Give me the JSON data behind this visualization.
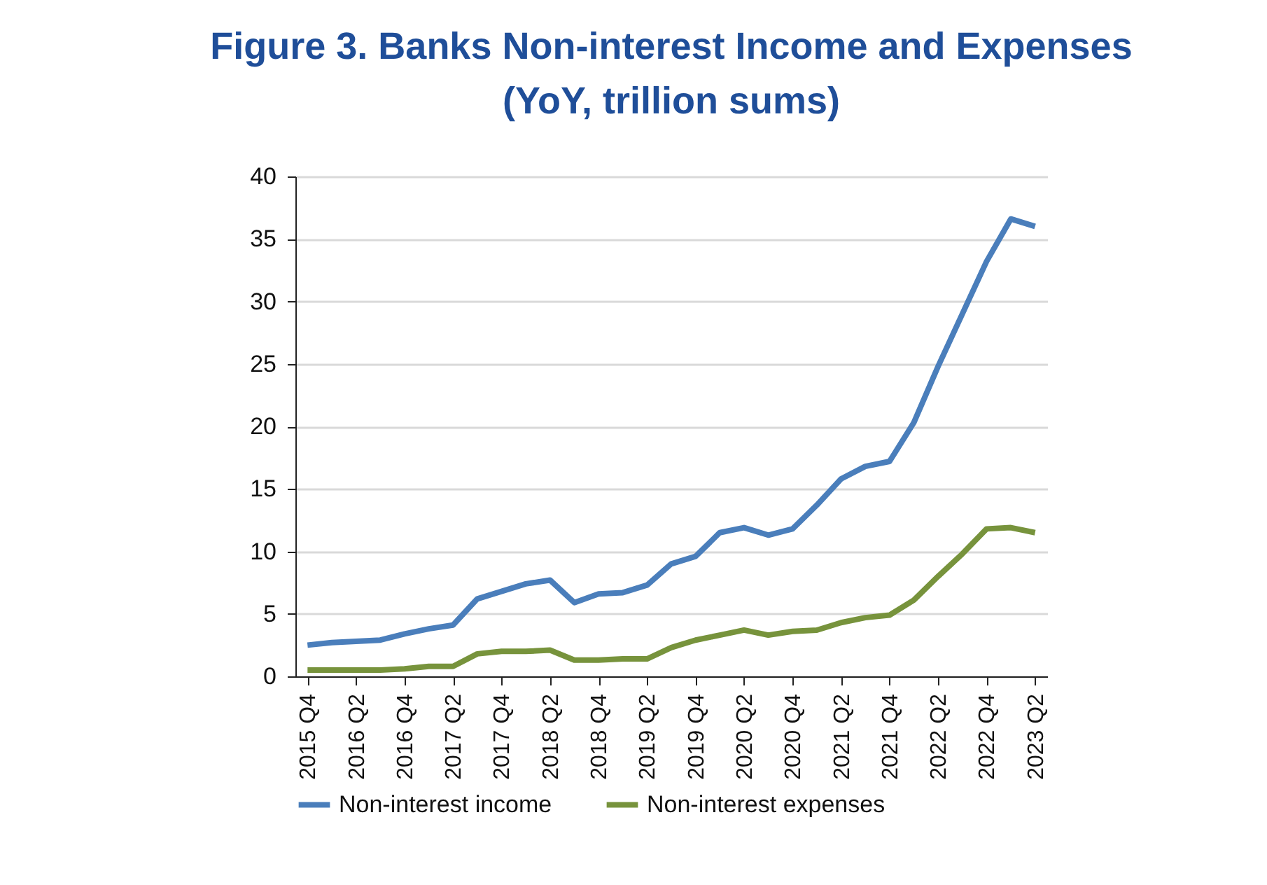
{
  "chart_data": {
    "type": "line",
    "title": "Figure 3. Banks Non-interest Income and Expenses",
    "subtitle": "(YoY, trillion sums)",
    "categories": [
      "2015 Q4",
      null,
      "2016 Q2",
      null,
      "2016 Q4",
      null,
      "2017 Q2",
      null,
      "2017 Q4",
      null,
      "2018 Q2",
      null,
      "2018 Q4",
      null,
      "2019 Q2",
      null,
      "2019 Q4",
      null,
      "2020 Q2",
      null,
      "2020 Q4",
      null,
      "2021 Q2",
      null,
      "2021 Q4",
      null,
      "2022 Q2",
      null,
      "2022 Q4",
      null,
      "2023 Q2"
    ],
    "series": [
      {
        "name": "Non-interest income",
        "color": "#4a7ebb",
        "values": [
          2.5,
          2.7,
          2.8,
          2.9,
          3.4,
          3.8,
          4.1,
          6.2,
          6.8,
          7.4,
          7.7,
          5.9,
          6.6,
          6.7,
          7.3,
          9.0,
          9.6,
          11.5,
          11.9,
          11.3,
          11.8,
          13.7,
          15.8,
          16.8,
          17.2,
          20.3,
          24.8,
          29.0,
          33.2,
          36.6,
          36.0
        ]
      },
      {
        "name": "Non-interest expenses",
        "color": "#77933c",
        "values": [
          0.5,
          0.5,
          0.5,
          0.5,
          0.6,
          0.8,
          0.8,
          1.8,
          2.0,
          2.0,
          2.1,
          1.3,
          1.3,
          1.4,
          1.4,
          2.3,
          2.9,
          3.3,
          3.7,
          3.3,
          3.6,
          3.7,
          4.3,
          4.7,
          4.9,
          6.1,
          8.0,
          9.8,
          11.8,
          11.9,
          11.5
        ]
      }
    ],
    "ylim": [
      0,
      40
    ],
    "yticks": [
      0,
      5,
      10,
      15,
      20,
      25,
      30,
      35,
      40
    ],
    "grid": "y",
    "legend": "bottom",
    "marker": "none",
    "line_style": "solid"
  }
}
